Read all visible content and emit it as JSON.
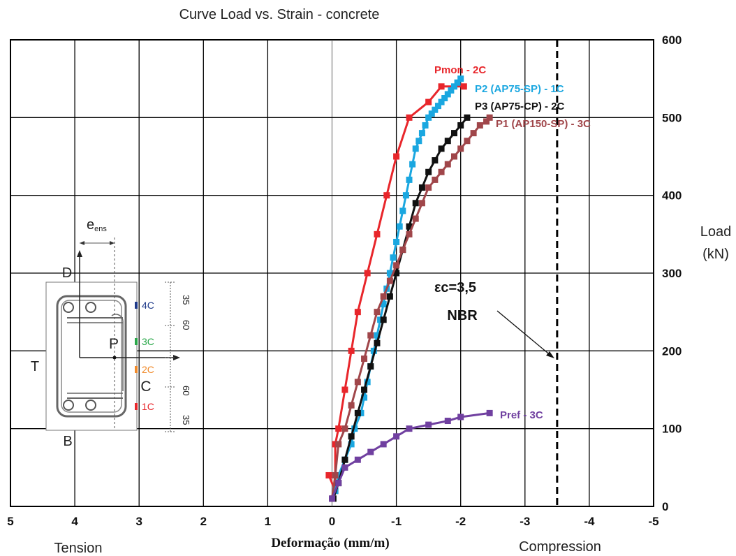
{
  "chart_data": {
    "type": "line",
    "title": "Curve Load vs. Strain - concrete",
    "xlabel": "Deformação  (mm/m)",
    "ylabel_line1": "Load",
    "ylabel_line2": "(kN)",
    "x_left_label": "Tension",
    "x_right_label": "Compression",
    "xlim": [
      5,
      -5
    ],
    "ylim": [
      0,
      600
    ],
    "x_ticks": [
      5,
      4,
      3,
      2,
      1,
      0,
      -1,
      -2,
      -3,
      -4,
      -5
    ],
    "x_tick_labels": [
      "5",
      "4",
      "3",
      "2",
      "1",
      "0",
      "-1",
      "-2",
      "-3",
      "-4",
      "-5"
    ],
    "y_ticks": [
      0,
      100,
      200,
      300,
      400,
      500,
      600
    ],
    "y_tick_labels": [
      "0",
      "100",
      "200",
      "300",
      "400",
      "500",
      "600"
    ],
    "grid": true,
    "limit_line": {
      "x": -3.5,
      "label1": "εc=3,5",
      "label2": "NBR"
    },
    "series": [
      {
        "name": "Pmon - 2C",
        "color": "#e8262b",
        "x": [
          0.05,
          -0.05,
          -0.05,
          -0.1,
          -0.2,
          -0.3,
          -0.4,
          -0.55,
          -0.7,
          -0.85,
          -1.0,
          -1.2,
          -1.5,
          -1.7,
          -2.05
        ],
        "y": [
          40,
          20,
          80,
          100,
          150,
          200,
          250,
          300,
          350,
          400,
          450,
          500,
          520,
          540,
          540
        ]
      },
      {
        "name": "P2 (AP75-SP) - 1C",
        "color": "#1aa7e0",
        "x": [
          -0.05,
          -0.1,
          -0.2,
          -0.3,
          -0.35,
          -0.45,
          -0.5,
          -0.55,
          -0.6,
          -0.65,
          -0.7,
          -0.75,
          -0.8,
          -0.85,
          -0.9,
          -0.95,
          -1.0,
          -1.05,
          -1.1,
          -1.15,
          -1.2,
          -1.25,
          -1.3,
          -1.35,
          -1.4,
          -1.45,
          -1.5,
          -1.55,
          -1.6,
          -1.65,
          -1.7,
          -1.75,
          -1.8,
          -1.85,
          -1.9,
          -1.95,
          -2.0
        ],
        "y": [
          20,
          40,
          60,
          80,
          100,
          120,
          140,
          160,
          180,
          200,
          220,
          240,
          260,
          280,
          300,
          320,
          340,
          360,
          380,
          400,
          420,
          440,
          460,
          470,
          480,
          490,
          500,
          505,
          510,
          515,
          520,
          525,
          530,
          535,
          540,
          545,
          550
        ]
      },
      {
        "name": "P3 (AP75-CP) - 2C",
        "color": "#111111",
        "x": [
          -0.02,
          -0.1,
          -0.2,
          -0.3,
          -0.4,
          -0.5,
          -0.6,
          -0.7,
          -0.8,
          -0.9,
          -1.0,
          -1.1,
          -1.2,
          -1.3,
          -1.4,
          -1.5,
          -1.6,
          -1.7,
          -1.8,
          -1.9,
          -2.0,
          -2.1
        ],
        "y": [
          10,
          30,
          60,
          90,
          120,
          150,
          180,
          210,
          240,
          270,
          300,
          330,
          360,
          390,
          410,
          430,
          445,
          460,
          470,
          480,
          490,
          500
        ]
      },
      {
        "name": "P1 (AP150-SP) - 3C",
        "color": "#a0464a",
        "x": [
          0.0,
          -0.05,
          -0.1,
          -0.2,
          -0.3,
          -0.4,
          -0.5,
          -0.6,
          -0.7,
          -0.8,
          -0.9,
          -1.0,
          -1.1,
          -1.2,
          -1.3,
          -1.4,
          -1.5,
          -1.6,
          -1.7,
          -1.8,
          -1.9,
          -2.0,
          -2.1,
          -2.2,
          -2.3,
          -2.4,
          -2.45
        ],
        "y": [
          10,
          40,
          80,
          100,
          130,
          160,
          190,
          220,
          250,
          270,
          290,
          310,
          330,
          350,
          370,
          390,
          410,
          420,
          430,
          440,
          450,
          460,
          470,
          480,
          490,
          495,
          500
        ]
      },
      {
        "name": "Pref - 3C",
        "color": "#7040a0",
        "x": [
          0.0,
          -0.1,
          -0.2,
          -0.4,
          -0.6,
          -0.8,
          -1.0,
          -1.2,
          -1.5,
          -1.8,
          -2.0,
          -2.45
        ],
        "y": [
          10,
          30,
          50,
          60,
          70,
          80,
          90,
          100,
          105,
          110,
          115,
          120
        ]
      }
    ]
  },
  "section": {
    "eccentricity_label": "e",
    "eccentricity_sub": "ens",
    "label_D": "D",
    "label_B": "B",
    "label_T": "T",
    "label_C": "C",
    "label_P": "P",
    "dim_top_1": "35",
    "dim_top_2": "60",
    "dim_bot_1": "60",
    "dim_bot_2": "35",
    "gauges": [
      {
        "label": "4C",
        "color": "#1f3a8a"
      },
      {
        "label": "3C",
        "color": "#2aa84a"
      },
      {
        "label": "2C",
        "color": "#f08a2a"
      },
      {
        "label": "1C",
        "color": "#e8262b"
      }
    ]
  }
}
